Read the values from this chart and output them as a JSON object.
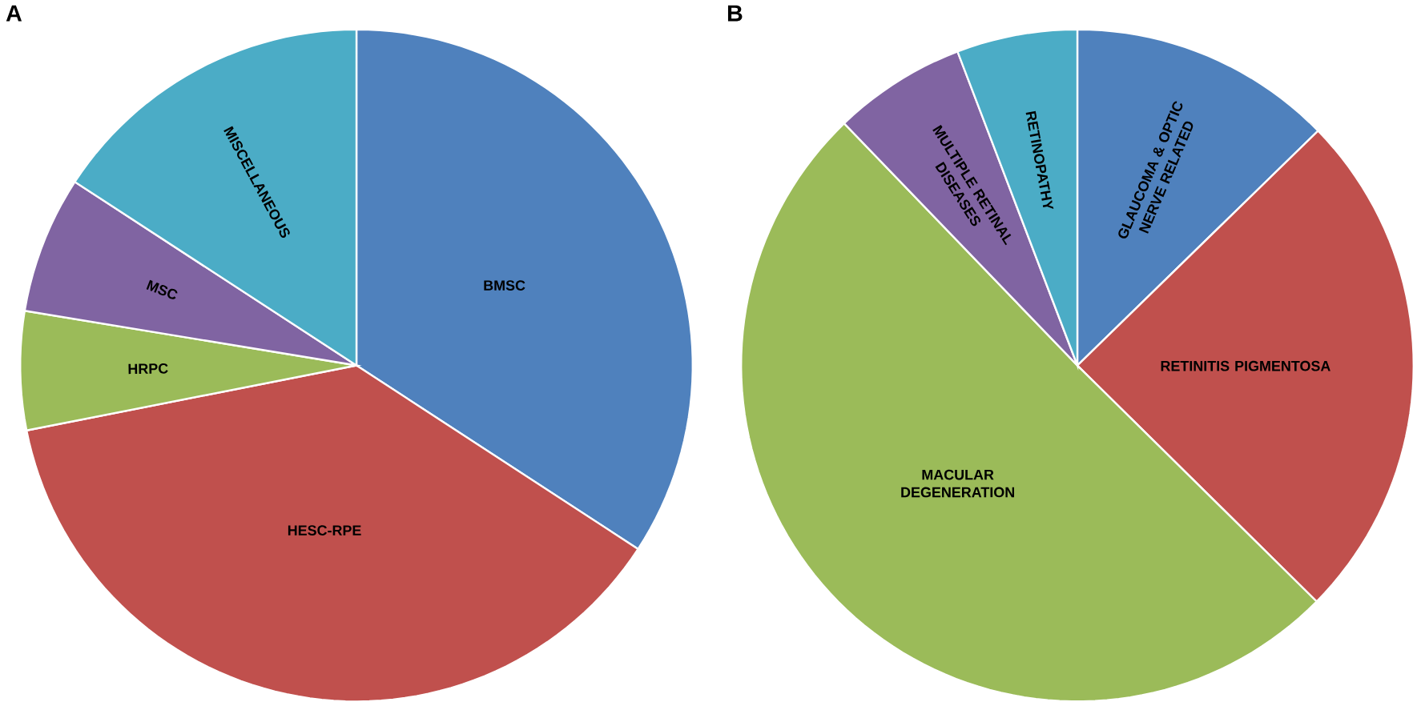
{
  "chart_data": [
    {
      "type": "pie",
      "title": "A",
      "categories": [
        "BMSC",
        "HESC-RPE",
        "HRPC",
        "MSC",
        "MISCELLANEOUS"
      ],
      "values": [
        34.2,
        37.7,
        5.7,
        6.6,
        15.8
      ],
      "colors": [
        "#4f81bd",
        "#c0504d",
        "#9bbb59",
        "#8064a2",
        "#4bacc6"
      ]
    },
    {
      "type": "pie",
      "title": "B",
      "categories": [
        "GLAUCOMA & OPTIC NERVE RELATED",
        "RETINITIS PIGMENTOSA",
        "MACULAR DEGENERATION",
        "MULTIPLE RETINAL DISEASES",
        "RETINOPATHY"
      ],
      "values": [
        12.7,
        24.7,
        50.4,
        6.4,
        5.8
      ],
      "colors": [
        "#4f81bd",
        "#c0504d",
        "#9bbb59",
        "#8064a2",
        "#4bacc6"
      ]
    }
  ]
}
